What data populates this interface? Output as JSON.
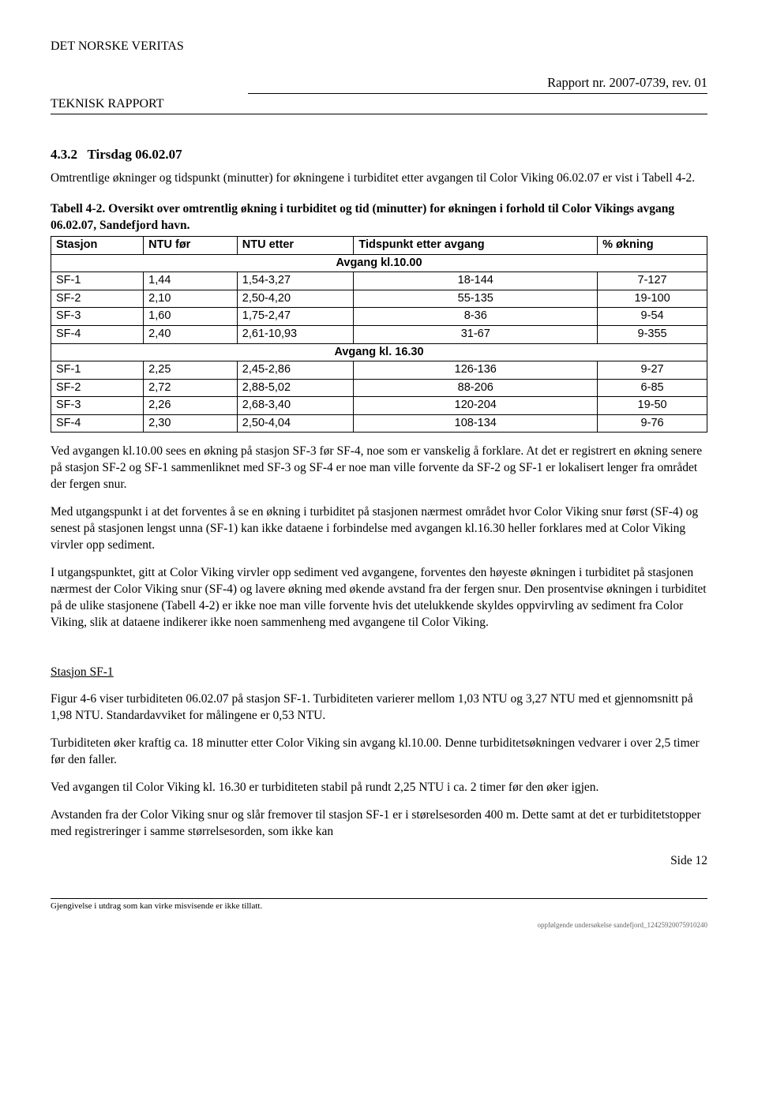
{
  "header": {
    "org": "DET NORSKE VERITAS",
    "report_no": "Rapport nr. 2007-0739, rev. 01",
    "teknisk": "TEKNISK RAPPORT"
  },
  "section": {
    "number": "4.3.2",
    "title": "Tirsdag 06.02.07"
  },
  "intro": "Omtrentlige økninger og tidspunkt (minutter) for økningene i turbiditet etter avgangen til Color Viking 06.02.07 er vist i Tabell 4-2.",
  "table": {
    "caption_label": "Tabell 4-2.",
    "caption_text": "Oversikt over omtrentlig økning i turbiditet og tid (minutter) for økningen i forhold til Color Vikings avgang 06.02.07, Sandefjord havn.",
    "columns": [
      "Stasjon",
      "NTU før",
      "NTU etter",
      "Tidspunkt etter avgang",
      "% økning"
    ],
    "group1_header": "Avgang kl.10.00",
    "group1_rows": [
      [
        "SF-1",
        "1,44",
        "1,54-3,27",
        "18-144",
        "7-127"
      ],
      [
        "SF-2",
        "2,10",
        "2,50-4,20",
        "55-135",
        "19-100"
      ],
      [
        "SF-3",
        "1,60",
        "1,75-2,47",
        "8-36",
        "9-54"
      ],
      [
        "SF-4",
        "2,40",
        "2,61-10,93",
        "31-67",
        "9-355"
      ]
    ],
    "group2_header": "Avgang kl. 16.30",
    "group2_rows": [
      [
        "SF-1",
        "2,25",
        "2,45-2,86",
        "126-136",
        "9-27"
      ],
      [
        "SF-2",
        "2,72",
        "2,88-5,02",
        "88-206",
        "6-85"
      ],
      [
        "SF-3",
        "2,26",
        "2,68-3,40",
        "120-204",
        "19-50"
      ],
      [
        "SF-4",
        "2,30",
        "2,50-4,04",
        "108-134",
        "9-76"
      ]
    ]
  },
  "para1": "Ved avgangen kl.10.00 sees en økning på stasjon SF-3 før SF-4, noe som er vanskelig å forklare. At det er registrert en økning senere på stasjon SF-2 og SF-1 sammenliknet med SF-3 og SF-4 er noe man ville forvente da SF-2 og SF-1 er lokalisert lenger fra området der fergen snur.",
  "para2": "Med utgangspunkt i at det forventes å se en økning i turbiditet på stasjonen nærmest området hvor Color Viking snur først (SF-4) og senest på stasjonen lengst unna (SF-1) kan ikke dataene i forbindelse med avgangen kl.16.30 heller forklares med at Color Viking virvler opp sediment.",
  "para3": "I utgangspunktet, gitt at Color Viking virvler opp sediment ved avgangene, forventes den høyeste økningen i turbiditet på stasjonen nærmest der Color Viking snur (SF-4) og lavere økning med økende avstand fra der fergen snur. Den prosentvise økningen i turbiditet på de ulike stasjonene (Tabell 4-2) er ikke noe man ville forvente hvis det utelukkende skyldes oppvirvling av sediment fra Color Viking, slik at dataene indikerer ikke noen sammenheng med avgangene til Color Viking.",
  "station": {
    "heading": "Stasjon SF-1",
    "p1": "Figur 4-6 viser turbiditeten 06.02.07 på stasjon SF-1. Turbiditeten varierer mellom 1,03 NTU og 3,27 NTU med et gjennomsnitt på 1,98 NTU. Standardavviket for målingene er 0,53 NTU.",
    "p2": "Turbiditeten øker kraftig ca. 18 minutter etter Color Viking sin avgang kl.10.00. Denne turbiditetsøkningen vedvarer i over 2,5 timer før den faller.",
    "p3": "Ved avgangen til Color Viking kl. 16.30 er turbiditeten stabil på rundt 2,25 NTU i ca. 2 timer før den øker igjen.",
    "p4": "Avstanden fra der Color Viking snur og slår fremover til stasjon SF-1 er i størelsesorden 400 m. Dette samt at det er turbiditetstopper med registreringer i samme størrelsesorden, som ikke kan"
  },
  "footer": {
    "side": "Side 12",
    "disclaimer": "Gjengivelse i utdrag som kan virke misvisende er ikke tillatt.",
    "docref": "oppfølgende undersøkelse sandefjord_12425920075910240"
  }
}
